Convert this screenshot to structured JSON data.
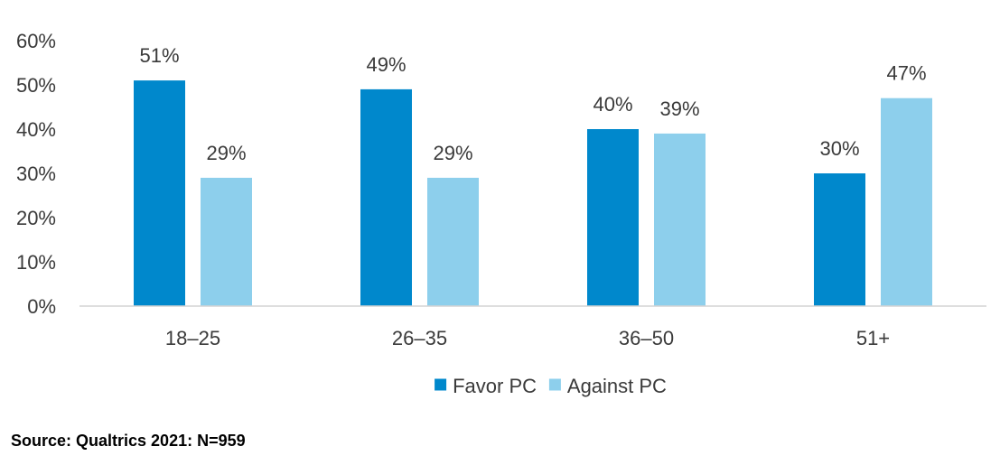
{
  "chart_data": {
    "type": "bar",
    "categories": [
      "18–25",
      "26–35",
      "36–50",
      "51+"
    ],
    "series": [
      {
        "name": "Favor PC",
        "color": "#0088cc",
        "values": [
          51,
          49,
          40,
          30
        ]
      },
      {
        "name": "Against PC",
        "color": "#8dcfec",
        "values": [
          29,
          29,
          39,
          47
        ]
      }
    ],
    "value_suffix": "%",
    "ylim": [
      0,
      60
    ],
    "yticks": [
      0,
      10,
      20,
      30,
      40,
      50,
      60
    ],
    "ytick_labels": [
      "0%",
      "10%",
      "20%",
      "30%",
      "40%",
      "50%",
      "60%"
    ],
    "data_labels": [
      [
        "51%",
        "49%",
        "40%",
        "30%"
      ],
      [
        "29%",
        "29%",
        "39%",
        "47%"
      ]
    ],
    "grid": false,
    "legend_position": "bottom",
    "title": "",
    "xlabel": "",
    "ylabel": ""
  },
  "source_note": "Source: Qualtrics 2021: N=959"
}
